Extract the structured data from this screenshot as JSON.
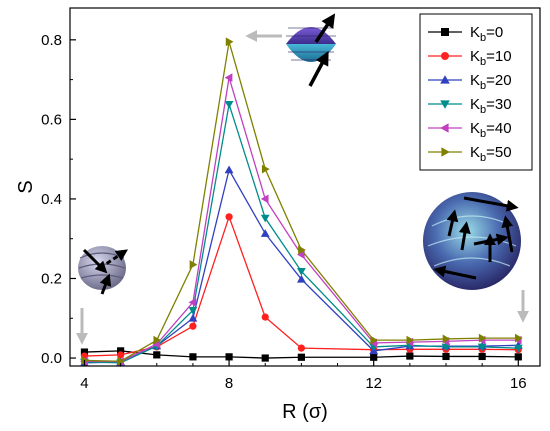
{
  "chart_data": {
    "type": "line",
    "xlabel": "R (σ)",
    "ylabel": "S",
    "xlim": [
      3.6,
      16.6
    ],
    "ylim": [
      -0.02,
      0.88
    ],
    "xticks": [
      4,
      8,
      12,
      16
    ],
    "yticks": [
      0.0,
      0.2,
      0.4,
      0.6,
      0.8
    ],
    "xtick_labels": [
      "4",
      "8",
      "12",
      "16"
    ],
    "ytick_labels": [
      "0.0",
      "0.2",
      "0.4",
      "0.6",
      "0.8"
    ],
    "legend": {
      "position": "top-right"
    },
    "grid": false,
    "x": [
      4,
      5,
      6,
      7,
      8,
      9,
      10,
      12,
      13,
      14,
      15,
      16
    ],
    "series": [
      {
        "name_base": "K",
        "name_sub": "b",
        "name_tail": "=0",
        "color": "#000000",
        "marker": "square",
        "values": [
          0.015,
          0.018,
          0.008,
          0.003,
          0.003,
          0.0,
          0.002,
          0.002,
          0.005,
          0.004,
          0.004,
          0.003
        ]
      },
      {
        "name_base": "K",
        "name_sub": "b",
        "name_tail": "=10",
        "color": "#ff2020",
        "marker": "circle",
        "values": [
          0.005,
          0.008,
          0.028,
          0.08,
          0.355,
          0.103,
          0.025,
          0.021,
          0.022,
          0.022,
          0.022,
          0.021
        ]
      },
      {
        "name_base": "K",
        "name_sub": "b",
        "name_tail": "=20",
        "color": "#3040c0",
        "marker": "triangle-up",
        "values": [
          -0.012,
          -0.01,
          0.03,
          0.1,
          0.473,
          0.313,
          0.198,
          0.018,
          0.03,
          0.03,
          0.03,
          0.032
        ]
      },
      {
        "name_base": "K",
        "name_sub": "b",
        "name_tail": "=30",
        "color": "#008c8c",
        "marker": "triangle-down",
        "values": [
          -0.01,
          -0.012,
          0.03,
          0.12,
          0.638,
          0.352,
          0.218,
          0.028,
          0.032,
          0.028,
          0.028,
          0.025
        ]
      },
      {
        "name_base": "K",
        "name_sub": "b",
        "name_tail": "=40",
        "color": "#c040c0",
        "marker": "triangle-left",
        "values": [
          -0.008,
          -0.009,
          0.035,
          0.14,
          0.705,
          0.4,
          0.26,
          0.038,
          0.04,
          0.042,
          0.045,
          0.045
        ]
      },
      {
        "name_base": "K",
        "name_sub": "b",
        "name_tail": "=50",
        "color": "#808000",
        "marker": "triangle-right",
        "values": [
          -0.006,
          -0.008,
          0.045,
          0.235,
          0.795,
          0.475,
          0.272,
          0.045,
          0.045,
          0.048,
          0.05,
          0.05
        ]
      }
    ]
  },
  "annotations": [
    {
      "name": "small-particle-inset",
      "target_x": 4,
      "target_y": 0.05
    },
    {
      "name": "medium-particle-inset",
      "target_x": 8,
      "target_y": 0.8
    },
    {
      "name": "large-particle-inset",
      "target_x": 16,
      "target_y": 0.05
    }
  ]
}
